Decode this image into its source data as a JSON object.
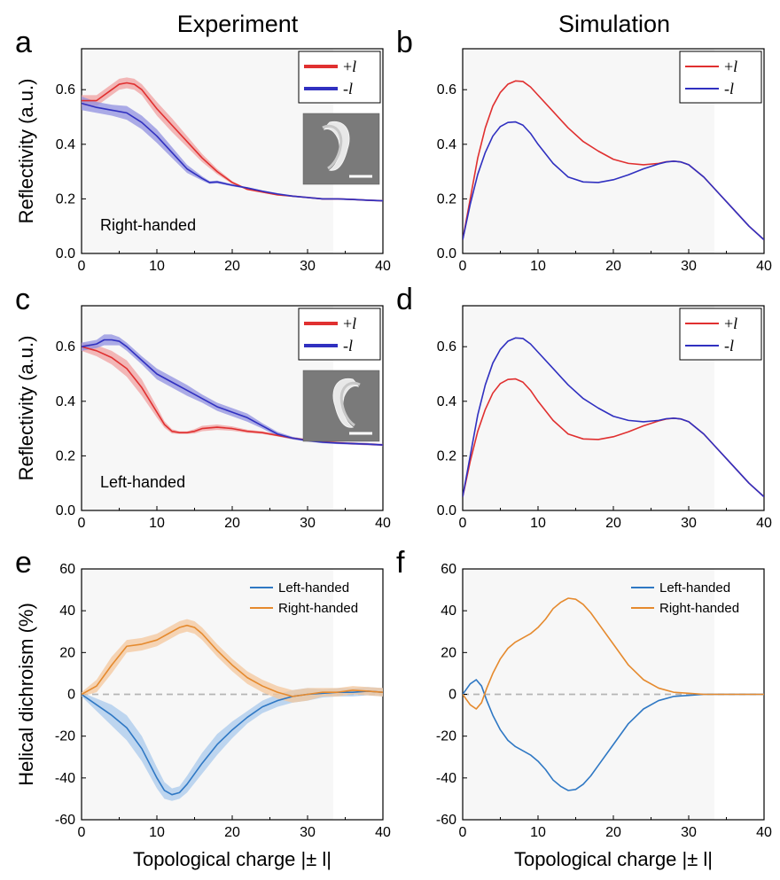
{
  "figure": {
    "column_titles": [
      "Experiment",
      "Simulation"
    ]
  },
  "chart_data": [
    {
      "id": "a",
      "panel_label": "a",
      "type": "line",
      "shaded_band": true,
      "xlabel": "",
      "ylabel": "Reflectivity (a.u.)",
      "xlim": [
        0,
        40
      ],
      "ylim": [
        0,
        0.75
      ],
      "xticks": [
        "0",
        "10",
        "20",
        "30",
        "40"
      ],
      "yticks": [
        "0.0",
        "0.2",
        "0.4",
        "0.6"
      ],
      "annotation": "Right-handed",
      "legend_position": "top-right",
      "inset": "SEM image of right-handed spiral structure with scale bar",
      "series": [
        {
          "name": "+l",
          "color": "#e03030",
          "band_color": "#f0a0a0",
          "x": [
            0,
            2,
            4,
            5,
            6,
            7,
            8,
            10,
            12,
            14,
            16,
            18,
            20,
            22,
            24,
            26,
            28,
            30,
            32,
            34,
            36,
            38,
            40
          ],
          "y": [
            0.56,
            0.56,
            0.6,
            0.62,
            0.625,
            0.62,
            0.6,
            0.53,
            0.47,
            0.41,
            0.35,
            0.3,
            0.26,
            0.235,
            0.225,
            0.215,
            0.21,
            0.205,
            0.2,
            0.2,
            0.198,
            0.195,
            0.193
          ],
          "band": [
            0.02,
            0.02,
            0.02,
            0.02,
            0.02,
            0.02,
            0.02,
            0.025,
            0.025,
            0.02,
            0.015,
            0.01,
            0.005,
            0.003,
            0.003,
            0.003,
            0.003,
            0.003,
            0.003,
            0.003,
            0.003,
            0.003,
            0.003
          ]
        },
        {
          "name": "-l",
          "color": "#3030c0",
          "band_color": "#9090e0",
          "x": [
            0,
            2,
            4,
            6,
            8,
            10,
            12,
            14,
            16,
            17,
            18,
            20,
            22,
            24,
            26,
            28,
            30,
            32,
            34,
            36,
            38,
            40
          ],
          "y": [
            0.55,
            0.535,
            0.525,
            0.515,
            0.48,
            0.43,
            0.37,
            0.31,
            0.275,
            0.26,
            0.262,
            0.25,
            0.24,
            0.228,
            0.218,
            0.21,
            0.205,
            0.2,
            0.2,
            0.198,
            0.195,
            0.193
          ],
          "band": [
            0.025,
            0.02,
            0.02,
            0.025,
            0.025,
            0.025,
            0.02,
            0.015,
            0.008,
            0.005,
            0.005,
            0.004,
            0.003,
            0.003,
            0.003,
            0.003,
            0.003,
            0.003,
            0.003,
            0.003,
            0.003,
            0.003
          ]
        }
      ]
    },
    {
      "id": "b",
      "panel_label": "b",
      "type": "line",
      "shaded_band": false,
      "xlabel": "",
      "ylabel": "",
      "xlim": [
        0,
        40
      ],
      "ylim": [
        0,
        0.75
      ],
      "xticks": [
        "0",
        "10",
        "20",
        "30",
        "40"
      ],
      "yticks": [
        "0.0",
        "0.2",
        "0.4",
        "0.6"
      ],
      "annotation": "",
      "legend_position": "top-right",
      "series": [
        {
          "name": "+l",
          "color": "#e03030",
          "x": [
            0,
            1,
            2,
            3,
            4,
            5,
            6,
            7,
            8,
            9,
            10,
            12,
            14,
            16,
            18,
            20,
            22,
            24,
            26,
            27,
            28,
            29,
            30,
            32,
            34,
            36,
            38,
            40
          ],
          "y": [
            0.05,
            0.2,
            0.35,
            0.46,
            0.54,
            0.59,
            0.62,
            0.632,
            0.63,
            0.61,
            0.58,
            0.52,
            0.46,
            0.41,
            0.375,
            0.345,
            0.33,
            0.325,
            0.33,
            0.336,
            0.338,
            0.335,
            0.325,
            0.28,
            0.22,
            0.16,
            0.1,
            0.05
          ]
        },
        {
          "name": "-l",
          "color": "#3030c0",
          "x": [
            0,
            1,
            2,
            3,
            4,
            5,
            6,
            7,
            8,
            9,
            10,
            12,
            14,
            16,
            18,
            20,
            22,
            24,
            26,
            27,
            28,
            29,
            30,
            32,
            34,
            36,
            38,
            40
          ],
          "y": [
            0.05,
            0.18,
            0.29,
            0.37,
            0.43,
            0.465,
            0.48,
            0.482,
            0.47,
            0.44,
            0.4,
            0.33,
            0.28,
            0.262,
            0.26,
            0.27,
            0.288,
            0.31,
            0.328,
            0.335,
            0.338,
            0.335,
            0.325,
            0.28,
            0.22,
            0.16,
            0.1,
            0.05
          ]
        }
      ]
    },
    {
      "id": "c",
      "panel_label": "c",
      "type": "line",
      "shaded_band": true,
      "xlabel": "",
      "ylabel": "Reflectivity (a.u.)",
      "xlim": [
        0,
        40
      ],
      "ylim": [
        0,
        0.75
      ],
      "xticks": [
        "0",
        "10",
        "20",
        "30",
        "40"
      ],
      "yticks": [
        "0.0",
        "0.2",
        "0.4",
        "0.6"
      ],
      "annotation": "Left-handed",
      "legend_position": "top-right",
      "inset": "SEM image of left-handed spiral structure with scale bar",
      "series": [
        {
          "name": "+l",
          "color": "#e03030",
          "band_color": "#f0a0a0",
          "x": [
            0,
            2,
            4,
            6,
            8,
            10,
            11,
            12,
            13,
            14,
            15,
            16,
            18,
            20,
            22,
            24,
            26,
            28,
            30,
            32,
            34,
            36,
            38,
            40
          ],
          "y": [
            0.6,
            0.585,
            0.56,
            0.52,
            0.45,
            0.36,
            0.315,
            0.29,
            0.285,
            0.285,
            0.29,
            0.3,
            0.305,
            0.3,
            0.29,
            0.285,
            0.275,
            0.265,
            0.258,
            0.252,
            0.248,
            0.245,
            0.243,
            0.24
          ],
          "band": [
            0.015,
            0.02,
            0.025,
            0.03,
            0.03,
            0.02,
            0.012,
            0.008,
            0.005,
            0.005,
            0.008,
            0.01,
            0.01,
            0.008,
            0.006,
            0.005,
            0.004,
            0.004,
            0.004,
            0.004,
            0.004,
            0.004,
            0.004,
            0.004
          ]
        },
        {
          "name": "-l",
          "color": "#3030c0",
          "band_color": "#9090e0",
          "x": [
            0,
            2,
            3,
            4,
            5,
            6,
            8,
            10,
            12,
            14,
            16,
            18,
            20,
            22,
            24,
            26,
            28,
            30,
            32,
            34,
            36,
            38,
            40
          ],
          "y": [
            0.6,
            0.61,
            0.625,
            0.625,
            0.62,
            0.6,
            0.55,
            0.5,
            0.47,
            0.44,
            0.41,
            0.38,
            0.36,
            0.34,
            0.31,
            0.28,
            0.265,
            0.256,
            0.25,
            0.247,
            0.245,
            0.243,
            0.24
          ],
          "band": [
            0.015,
            0.015,
            0.02,
            0.02,
            0.015,
            0.015,
            0.015,
            0.02,
            0.02,
            0.02,
            0.015,
            0.015,
            0.015,
            0.015,
            0.01,
            0.008,
            0.005,
            0.004,
            0.004,
            0.004,
            0.004,
            0.004,
            0.004
          ]
        }
      ]
    },
    {
      "id": "d",
      "panel_label": "d",
      "type": "line",
      "shaded_band": false,
      "xlabel": "",
      "ylabel": "",
      "xlim": [
        0,
        40
      ],
      "ylim": [
        0,
        0.75
      ],
      "xticks": [
        "0",
        "10",
        "20",
        "30",
        "40"
      ],
      "yticks": [
        "0.0",
        "0.2",
        "0.4",
        "0.6"
      ],
      "annotation": "",
      "legend_position": "top-right",
      "series": [
        {
          "name": "+l",
          "color": "#e03030",
          "x": [
            0,
            1,
            2,
            3,
            4,
            5,
            6,
            7,
            8,
            9,
            10,
            12,
            14,
            16,
            18,
            20,
            22,
            24,
            26,
            27,
            28,
            29,
            30,
            32,
            34,
            36,
            38,
            40
          ],
          "y": [
            0.05,
            0.18,
            0.29,
            0.37,
            0.43,
            0.465,
            0.48,
            0.482,
            0.47,
            0.44,
            0.4,
            0.33,
            0.28,
            0.262,
            0.26,
            0.27,
            0.288,
            0.31,
            0.328,
            0.335,
            0.338,
            0.335,
            0.325,
            0.28,
            0.22,
            0.16,
            0.1,
            0.05
          ]
        },
        {
          "name": "-l",
          "color": "#3030c0",
          "x": [
            0,
            1,
            2,
            3,
            4,
            5,
            6,
            7,
            8,
            9,
            10,
            12,
            14,
            16,
            18,
            20,
            22,
            24,
            26,
            27,
            28,
            29,
            30,
            32,
            34,
            36,
            38,
            40
          ],
          "y": [
            0.05,
            0.2,
            0.35,
            0.46,
            0.54,
            0.59,
            0.62,
            0.632,
            0.63,
            0.61,
            0.58,
            0.52,
            0.46,
            0.41,
            0.375,
            0.345,
            0.33,
            0.325,
            0.33,
            0.336,
            0.338,
            0.335,
            0.325,
            0.28,
            0.22,
            0.16,
            0.1,
            0.05
          ]
        }
      ]
    },
    {
      "id": "e",
      "panel_label": "e",
      "type": "line",
      "shaded_band": true,
      "xlabel": "Topological charge |± l|",
      "ylabel": "Helical dichroism (%)",
      "xlim": [
        0,
        40
      ],
      "ylim": [
        -60,
        60
      ],
      "xticks": [
        "0",
        "10",
        "20",
        "30",
        "40"
      ],
      "yticks": [
        "-60",
        "-40",
        "-20",
        "0",
        "20",
        "40",
        "60"
      ],
      "annotation": "",
      "zero_line": true,
      "legend_position": "top-right",
      "series": [
        {
          "name": "Left-handed",
          "color": "#2f78c4",
          "band_color": "#a9c9ec",
          "x": [
            0,
            2,
            4,
            6,
            8,
            10,
            11,
            12,
            13,
            14,
            16,
            18,
            20,
            22,
            24,
            26,
            28,
            30,
            32,
            34,
            36,
            38,
            40
          ],
          "y": [
            0,
            -5,
            -10,
            -16,
            -26,
            -40,
            -46,
            -48,
            -47,
            -43,
            -33,
            -24,
            -17,
            -11,
            -6,
            -3,
            -1,
            0,
            0.5,
            1,
            1,
            1.5,
            1
          ],
          "band": [
            1,
            3,
            5,
            6,
            6,
            5,
            4,
            3,
            3,
            4,
            5,
            5,
            4,
            3,
            3,
            3,
            3,
            3,
            2,
            2,
            2,
            2,
            2
          ]
        },
        {
          "name": "Right-handed",
          "color": "#e58a2e",
          "band_color": "#f4c79c",
          "x": [
            0,
            2,
            4,
            6,
            8,
            10,
            12,
            13,
            14,
            15,
            16,
            18,
            20,
            22,
            24,
            26,
            28,
            30,
            32,
            34,
            36,
            38,
            40
          ],
          "y": [
            0,
            4,
            14,
            23,
            24,
            26,
            30,
            32,
            33,
            32,
            29,
            21,
            14,
            8,
            4,
            1,
            -1,
            0,
            1,
            1,
            2,
            1.5,
            1
          ],
          "band": [
            1,
            3,
            4,
            3,
            3,
            3,
            3,
            3,
            3,
            3,
            3,
            3,
            3,
            3,
            3,
            3,
            3,
            3,
            2,
            2,
            2,
            2,
            2
          ]
        }
      ]
    },
    {
      "id": "f",
      "panel_label": "f",
      "type": "line",
      "shaded_band": false,
      "xlabel": "Topological charge |± l|",
      "ylabel": "",
      "xlim": [
        0,
        40
      ],
      "ylim": [
        -60,
        60
      ],
      "xticks": [
        "0",
        "10",
        "20",
        "30",
        "40"
      ],
      "yticks": [
        "-60",
        "-40",
        "-20",
        "0",
        "20",
        "40",
        "60"
      ],
      "annotation": "",
      "zero_line": true,
      "legend_position": "top-right",
      "series": [
        {
          "name": "Left-handed",
          "color": "#2f78c4",
          "x": [
            0,
            1,
            1.8,
            2.5,
            3.2,
            4,
            5,
            6,
            7,
            8,
            9,
            10,
            11,
            12,
            13,
            14,
            15,
            16,
            17,
            18,
            20,
            22,
            24,
            26,
            28,
            30,
            32,
            34,
            36,
            38,
            40
          ],
          "y": [
            0,
            5,
            7,
            4,
            -3,
            -10,
            -17,
            -22,
            -25,
            -27,
            -29,
            -32,
            -36,
            -41,
            -44,
            -46,
            -45.5,
            -43,
            -39,
            -34,
            -24,
            -14,
            -7,
            -3,
            -1,
            -0.5,
            0,
            0,
            0,
            0,
            0
          ]
        },
        {
          "name": "Right-handed",
          "color": "#e58a2e",
          "x": [
            0,
            1,
            1.8,
            2.5,
            3.2,
            4,
            5,
            6,
            7,
            8,
            9,
            10,
            11,
            12,
            13,
            14,
            15,
            16,
            17,
            18,
            20,
            22,
            24,
            26,
            28,
            30,
            32,
            34,
            36,
            38,
            40
          ],
          "y": [
            0,
            -5,
            -7,
            -4,
            3,
            10,
            17,
            22,
            25,
            27,
            29,
            32,
            36,
            41,
            44,
            46,
            45.5,
            43,
            39,
            34,
            24,
            14,
            7,
            3,
            1,
            0.5,
            0,
            0,
            0,
            0,
            0
          ]
        }
      ]
    }
  ]
}
